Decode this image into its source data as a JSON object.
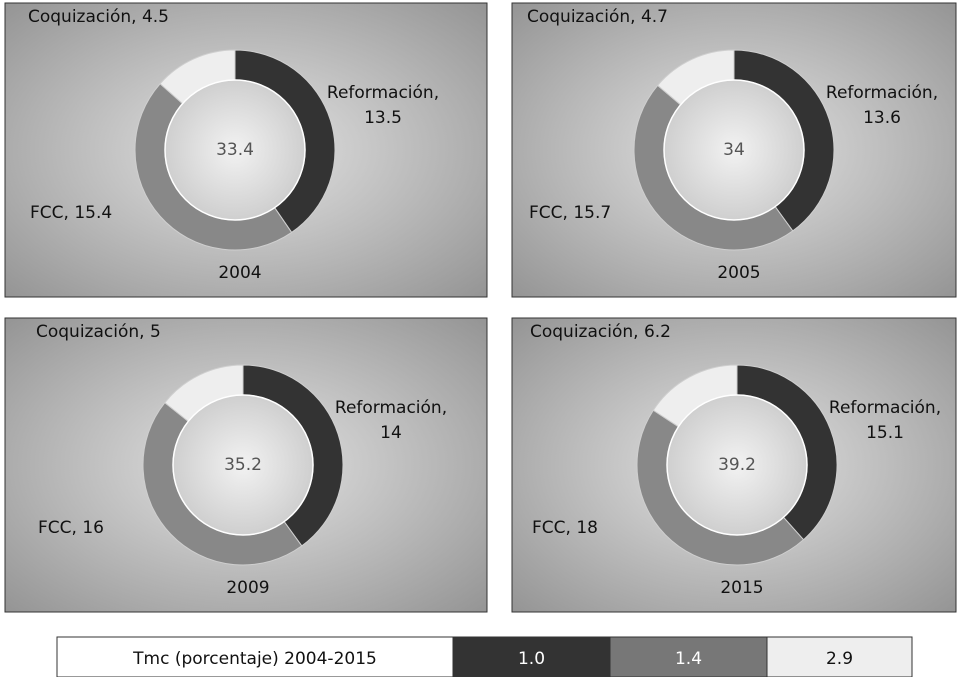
{
  "chart_data": [
    {
      "type": "donut",
      "title": "2004",
      "total": 33.4,
      "values": [
        13.5,
        15.4,
        4.5
      ],
      "value_labels": [
        "Reformación, 13.5",
        "FCC, 15.4",
        "Coquización, 4.5"
      ],
      "colors": [
        "#333333",
        "#888888",
        "#eeeeee"
      ]
    },
    {
      "type": "donut",
      "title": "2005",
      "total": 34,
      "values": [
        13.6,
        15.7,
        4.7
      ],
      "value_labels": [
        "Reformación, 13.6",
        "FCC, 15.7",
        "Coquización, 4.7"
      ],
      "colors": [
        "#333333",
        "#888888",
        "#eeeeee"
      ]
    },
    {
      "type": "donut",
      "title": "2009",
      "total": 35.2,
      "values": [
        14,
        16,
        5
      ],
      "value_labels": [
        "Reformación, 14",
        "FCC, 16",
        "Coquización, 5"
      ],
      "colors": [
        "#333333",
        "#888888",
        "#eeeeee"
      ]
    },
    {
      "type": "donut",
      "title": "2015",
      "total": 39.2,
      "values": [
        15.1,
        18,
        6.2
      ],
      "value_labels": [
        "Reformación, 15.1",
        "FCC, 18",
        "Coquización, 6.2"
      ],
      "colors": [
        "#333333",
        "#888888",
        "#eeeeee"
      ]
    }
  ],
  "growth_table": {
    "label": "Tmc (porcentaje) 2004-2015",
    "values": [
      1.0,
      1.4,
      2.9
    ],
    "value_labels": [
      "1.0",
      "1.4",
      "2.9"
    ],
    "colors": [
      "#333333",
      "#777777",
      "#eeeeee"
    ]
  }
}
